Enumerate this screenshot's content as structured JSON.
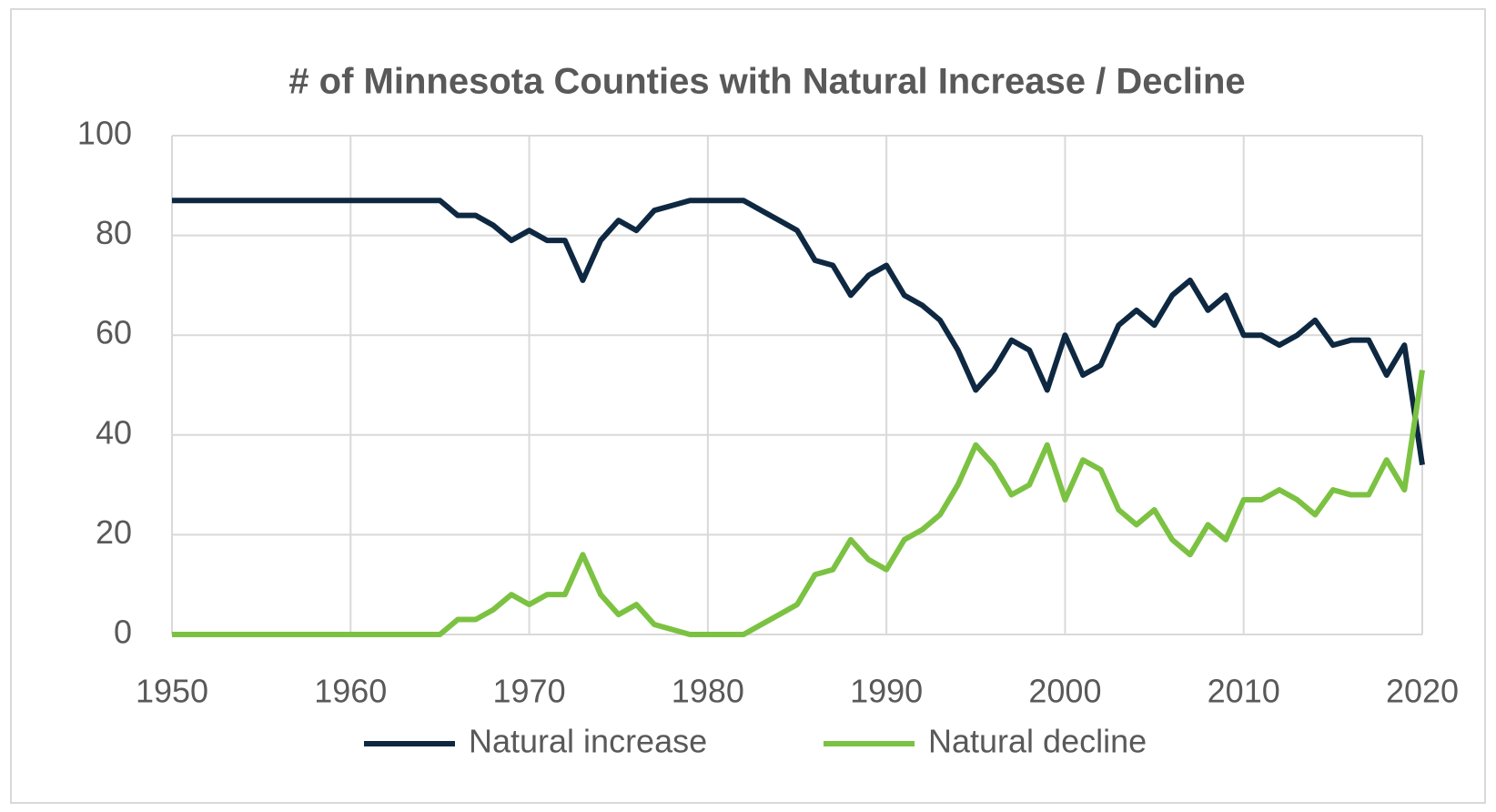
{
  "chart_data": {
    "type": "line",
    "title": "# of Minnesota Counties with Natural Increase / Decline",
    "x": [
      1950,
      1951,
      1952,
      1953,
      1954,
      1955,
      1956,
      1957,
      1958,
      1959,
      1960,
      1961,
      1962,
      1963,
      1964,
      1965,
      1966,
      1967,
      1968,
      1969,
      1970,
      1971,
      1972,
      1973,
      1974,
      1975,
      1976,
      1977,
      1978,
      1979,
      1980,
      1981,
      1982,
      1983,
      1984,
      1985,
      1986,
      1987,
      1988,
      1989,
      1990,
      1991,
      1992,
      1993,
      1994,
      1995,
      1996,
      1997,
      1998,
      1999,
      2000,
      2001,
      2002,
      2003,
      2004,
      2005,
      2006,
      2007,
      2008,
      2009,
      2010,
      2011,
      2012,
      2013,
      2014,
      2015,
      2016,
      2017,
      2018,
      2019,
      2020
    ],
    "series": [
      {
        "name": "Natural increase",
        "color": "#0e2841",
        "values": [
          87,
          87,
          87,
          87,
          87,
          87,
          87,
          87,
          87,
          87,
          87,
          87,
          87,
          87,
          87,
          87,
          84,
          84,
          82,
          79,
          81,
          79,
          79,
          71,
          79,
          83,
          81,
          85,
          86,
          87,
          87,
          87,
          87,
          85,
          83,
          81,
          75,
          74,
          68,
          72,
          74,
          68,
          66,
          63,
          57,
          49,
          53,
          59,
          57,
          49,
          60,
          52,
          54,
          62,
          65,
          62,
          68,
          71,
          65,
          68,
          60,
          60,
          58,
          60,
          63,
          58,
          59,
          59,
          52,
          58,
          34
        ]
      },
      {
        "name": "Natural decline",
        "color": "#7cc242",
        "values": [
          0,
          0,
          0,
          0,
          0,
          0,
          0,
          0,
          0,
          0,
          0,
          0,
          0,
          0,
          0,
          0,
          3,
          3,
          5,
          8,
          6,
          8,
          8,
          16,
          8,
          4,
          6,
          2,
          1,
          0,
          0,
          0,
          0,
          2,
          4,
          6,
          12,
          13,
          19,
          15,
          13,
          19,
          21,
          24,
          30,
          38,
          34,
          28,
          30,
          38,
          27,
          35,
          33,
          25,
          22,
          25,
          19,
          16,
          22,
          19,
          27,
          27,
          29,
          27,
          24,
          29,
          28,
          28,
          35,
          29,
          53
        ]
      }
    ],
    "xlim": [
      1950,
      2020
    ],
    "xticks": [
      1950,
      1960,
      1970,
      1980,
      1990,
      2000,
      2010,
      2020
    ],
    "ylim": [
      0,
      100
    ],
    "yticks": [
      0,
      20,
      40,
      60,
      80,
      100
    ],
    "grid": true,
    "legend": "bottom"
  }
}
